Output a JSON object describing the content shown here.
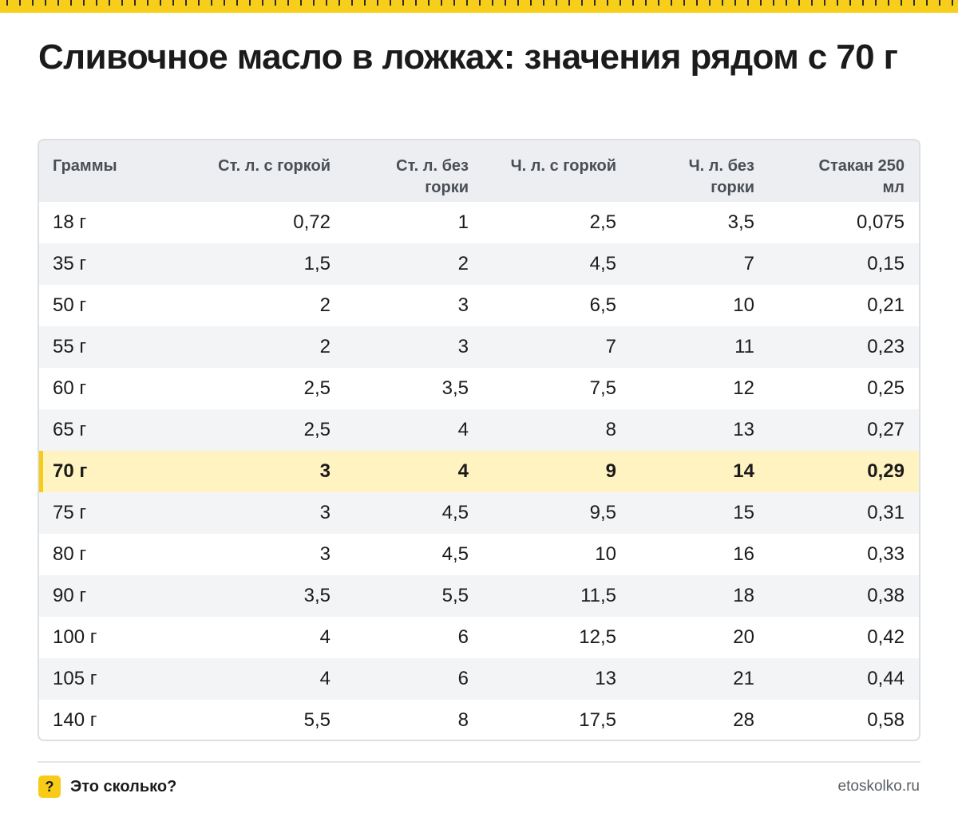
{
  "title": "Сливочное масло в ложках: значения рядом с 70 г",
  "colors": {
    "accent": "#f7cb17",
    "highlight_row": "#fff3c2",
    "header_bg": "#eceef1",
    "alt_row": "#f3f4f6"
  },
  "table": {
    "headers": [
      "Граммы",
      "Ст. л. с горкой",
      "Ст. л. без горки",
      "Ч. л. с горкой",
      "Ч. л. без горки",
      "Стакан 250 мл"
    ],
    "rows": [
      [
        "18 г",
        "0,72",
        "1",
        "2,5",
        "3,5",
        "0,075"
      ],
      [
        "35 г",
        "1,5",
        "2",
        "4,5",
        "7",
        "0,15"
      ],
      [
        "50 г",
        "2",
        "3",
        "6,5",
        "10",
        "0,21"
      ],
      [
        "55 г",
        "2",
        "3",
        "7",
        "11",
        "0,23"
      ],
      [
        "60 г",
        "2,5",
        "3,5",
        "7,5",
        "12",
        "0,25"
      ],
      [
        "65 г",
        "2,5",
        "4",
        "8",
        "13",
        "0,27"
      ],
      [
        "70 г",
        "3",
        "4",
        "9",
        "14",
        "0,29"
      ],
      [
        "75 г",
        "3",
        "4,5",
        "9,5",
        "15",
        "0,31"
      ],
      [
        "80 г",
        "3",
        "4,5",
        "10",
        "16",
        "0,33"
      ],
      [
        "90 г",
        "3,5",
        "5,5",
        "11,5",
        "18",
        "0,38"
      ],
      [
        "100 г",
        "4",
        "6",
        "12,5",
        "20",
        "0,42"
      ],
      [
        "105 г",
        "4",
        "6",
        "13",
        "21",
        "0,44"
      ],
      [
        "140 г",
        "5,5",
        "8",
        "17,5",
        "28",
        "0,58"
      ]
    ],
    "highlighted_row": "70 г"
  },
  "footer": {
    "badge": "?",
    "brand": "Это сколько?",
    "site": "etoskolko.ru"
  }
}
